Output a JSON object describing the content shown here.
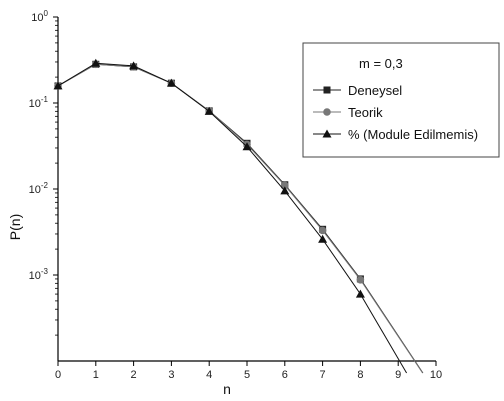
{
  "chart_data": {
    "type": "line",
    "xlabel": "n",
    "ylabel": "P(n)",
    "xlim": [
      0,
      10
    ],
    "ylim_log10": [
      -4,
      0
    ],
    "y_scale": "log",
    "x_ticks": [
      "0",
      "1",
      "2",
      "3",
      "4",
      "5",
      "6",
      "7",
      "8",
      "9",
      "10"
    ],
    "y_ticks": [
      {
        "base": "10",
        "exp": "0"
      },
      {
        "base": "10",
        "exp": "-1"
      },
      {
        "base": "10",
        "exp": "-2"
      },
      {
        "base": "10",
        "exp": "-3"
      }
    ],
    "legend": {
      "title": "m = 0,3",
      "placement": "top-right"
    },
    "series": [
      {
        "name": "Deneysel",
        "marker": "square",
        "color": "#222222",
        "x": [
          0,
          1,
          2,
          3,
          4,
          5,
          6,
          7,
          8
        ],
        "y": [
          0.158,
          0.282,
          0.263,
          0.17,
          0.081,
          0.034,
          0.0112,
          0.0034,
          0.0009
        ]
      },
      {
        "name": "Teorik",
        "marker": "circle",
        "color": "#777777",
        "x": [
          0,
          1,
          2,
          3,
          4,
          5,
          6,
          7,
          8
        ],
        "y": [
          0.158,
          0.282,
          0.263,
          0.17,
          0.081,
          0.033,
          0.011,
          0.0033,
          0.00088
        ]
      },
      {
        "name": "% (Module Edilmemis)",
        "marker": "triangle",
        "color": "#111111",
        "x": [
          0,
          1,
          2,
          3,
          4,
          5,
          6,
          7,
          8
        ],
        "y": [
          0.158,
          0.29,
          0.27,
          0.17,
          0.08,
          0.031,
          0.0095,
          0.0026,
          0.0006
        ]
      }
    ]
  }
}
